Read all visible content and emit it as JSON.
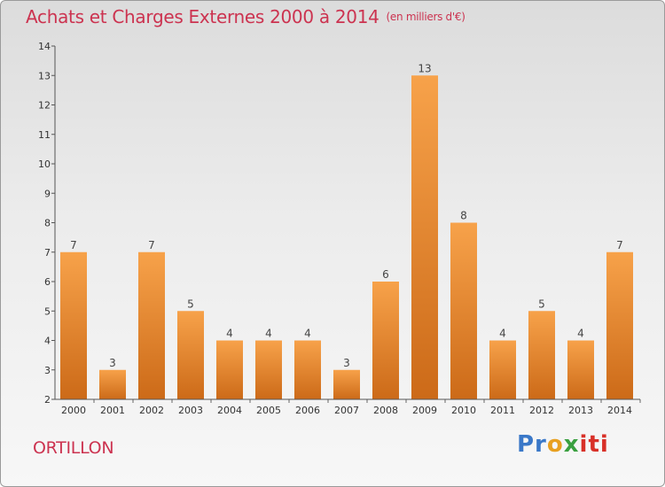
{
  "chart_data": {
    "type": "bar",
    "title": "Achats et Charges Externes 2000 à 2014",
    "subtitle": "(en milliers d'€)",
    "categories": [
      "2000",
      "2001",
      "2002",
      "2003",
      "2004",
      "2005",
      "2006",
      "2007",
      "2008",
      "2009",
      "2010",
      "2011",
      "2012",
      "2013",
      "2014"
    ],
    "values": [
      7,
      3,
      7,
      5,
      4,
      4,
      4,
      3,
      6,
      13,
      8,
      4,
      5,
      4,
      7
    ],
    "ylim": [
      2,
      14
    ],
    "yticks": [
      2,
      3,
      4,
      5,
      6,
      7,
      8,
      9,
      10,
      11,
      12,
      13,
      14
    ],
    "grid": false,
    "legend": "none",
    "bar_color_top": "#f7a24a",
    "bar_color_bottom": "#cc6a18"
  },
  "footer": {
    "commune": "ORTILLON",
    "logo": {
      "p1": "Pr",
      "p2": "o",
      "p3": "x",
      "p4": "iti"
    }
  }
}
